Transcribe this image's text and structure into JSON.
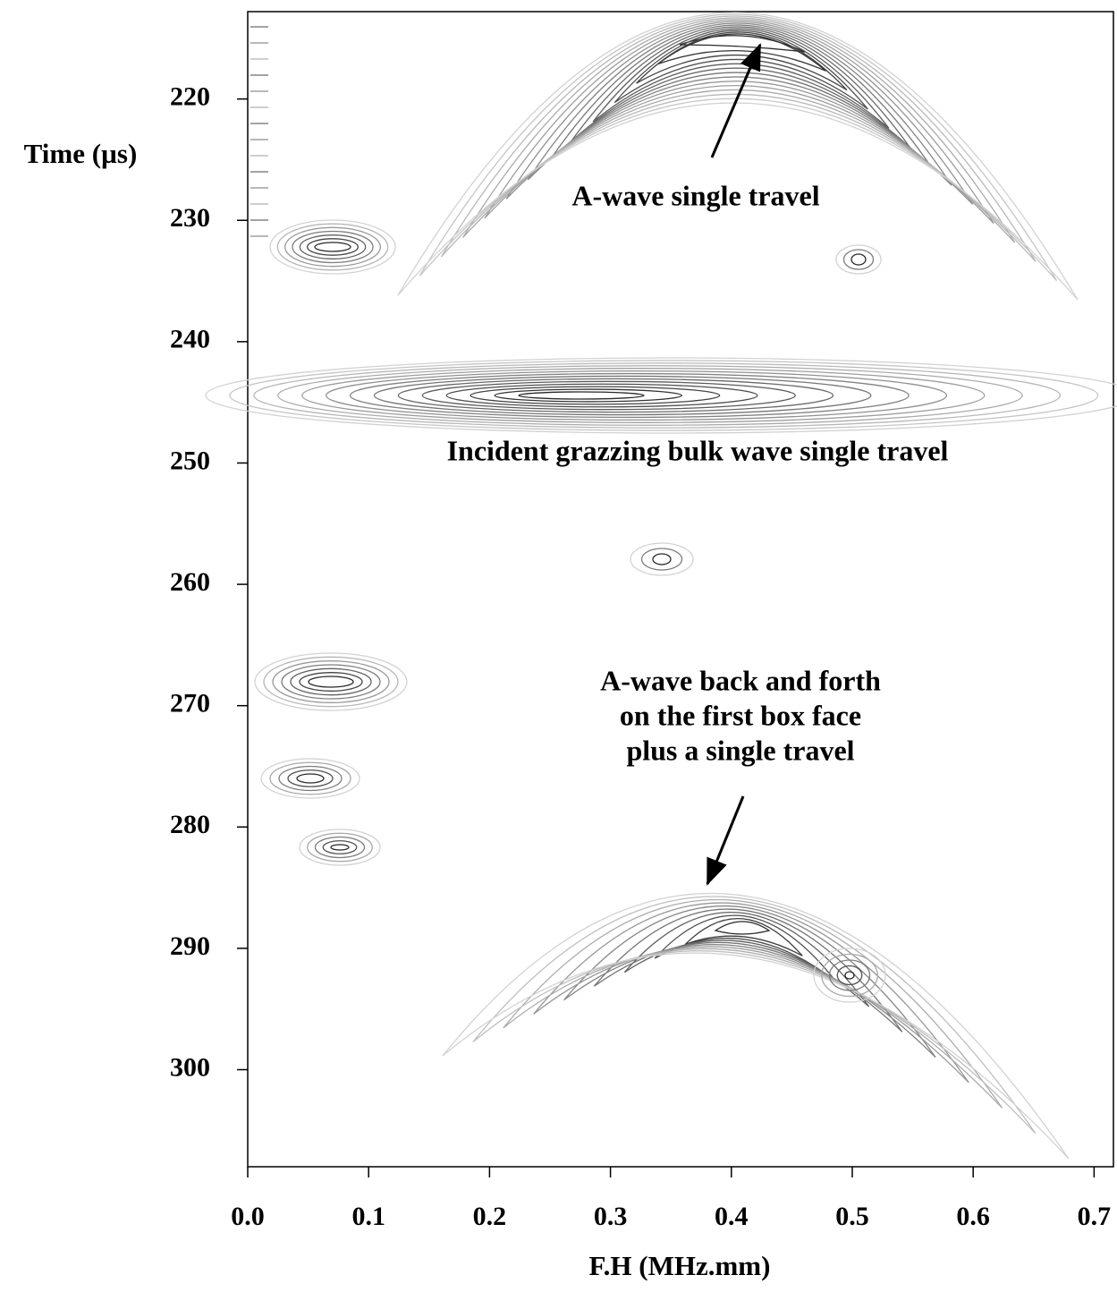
{
  "chart_data": {
    "type": "contour",
    "y_label": "Time (µs)",
    "x_label": "F.H (MHz.mm)",
    "xlim": [
      0,
      0.716
    ],
    "xticks": [
      {
        "value": 0,
        "label": "0.0"
      },
      0.1,
      0.2,
      0.3,
      0.4,
      0.5,
      0.6,
      0.7
    ],
    "ylim": [
      212.8,
      308
    ],
    "yticks": [
      220,
      230,
      240,
      250,
      260,
      270,
      280,
      290,
      300
    ],
    "y_inverted": true,
    "annotations": [
      {
        "lines": [
          "A-wave single travel"
        ]
      },
      {
        "lines": [
          "Incident grazzing bulk wave single travel"
        ]
      },
      {
        "lines": [
          "A-wave back and forth",
          "on the first box face",
          "plus a single travel"
        ]
      }
    ]
  }
}
